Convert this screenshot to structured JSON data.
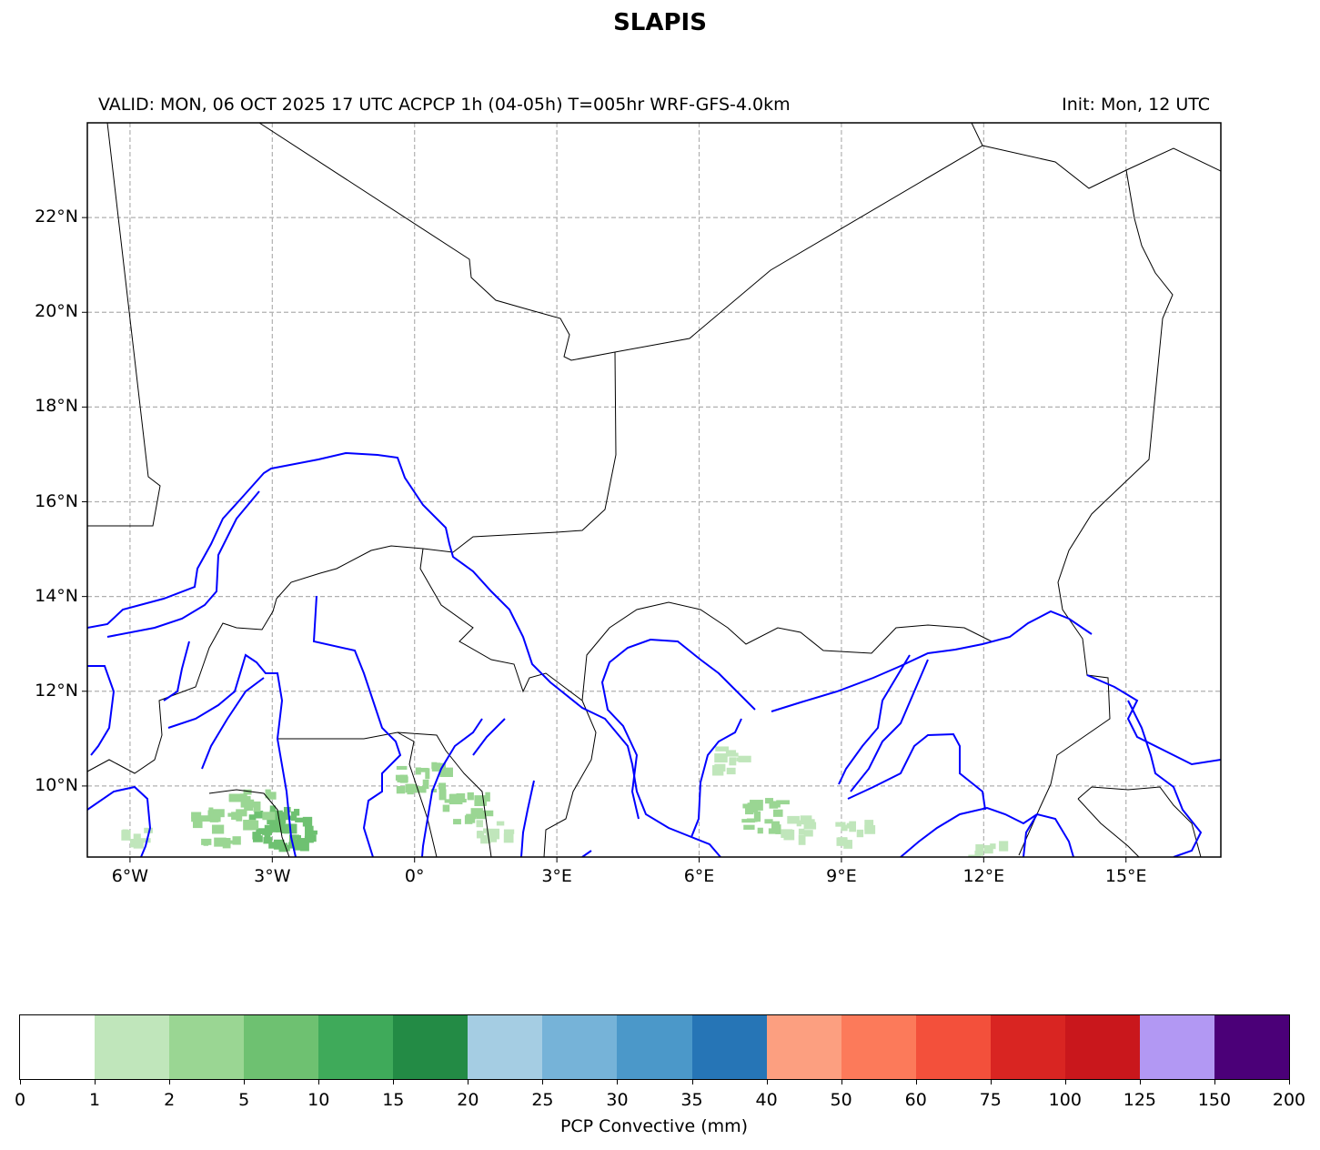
{
  "title": "SLAPIS",
  "subtitle_left": "VALID: MON, 06 OCT 2025 17 UTC   ACPCP 1h (04-05h) T=005hr WRF-GFS-4.0km",
  "subtitle_right": "Init: Mon, 12 UTC",
  "map": {
    "lon_range": [
      -6.9,
      17
    ],
    "lat_range": [
      8.5,
      24
    ],
    "gridlines": true,
    "lon_ticks": [
      {
        "value": -6,
        "label": "6°W"
      },
      {
        "value": -3,
        "label": "3°W"
      },
      {
        "value": 0,
        "label": "0°"
      },
      {
        "value": 3,
        "label": "3°E"
      },
      {
        "value": 6,
        "label": "6°E"
      },
      {
        "value": 9,
        "label": "9°E"
      },
      {
        "value": 12,
        "label": "12°E"
      },
      {
        "value": 15,
        "label": "15°E"
      }
    ],
    "lat_ticks": [
      {
        "value": 22,
        "label": "22°N"
      },
      {
        "value": 20,
        "label": "20°N"
      },
      {
        "value": 18,
        "label": "18°N"
      },
      {
        "value": 16,
        "label": "16°N"
      },
      {
        "value": 14,
        "label": "14°N"
      },
      {
        "value": 12,
        "label": "12°N"
      },
      {
        "value": 10,
        "label": "10°N"
      }
    ],
    "border_color": "#000000",
    "river_color": "#0000ff",
    "precip_areas": [
      {
        "lon": -3.0,
        "lat": 9.3,
        "level": "5-10"
      },
      {
        "lon": -2.7,
        "lat": 9.1,
        "level": "5-10"
      },
      {
        "lon": -3.5,
        "lat": 9.6,
        "level": "2-5"
      },
      {
        "lon": -4.3,
        "lat": 9.2,
        "level": "2-5"
      },
      {
        "lon": -5.9,
        "lat": 9.0,
        "level": "1-2"
      },
      {
        "lon": 0.1,
        "lat": 10.2,
        "level": "2-5"
      },
      {
        "lon": 1.0,
        "lat": 9.6,
        "level": "2-5"
      },
      {
        "lon": 1.6,
        "lat": 9.1,
        "level": "1-2"
      },
      {
        "lon": 7.3,
        "lat": 9.4,
        "level": "2-5"
      },
      {
        "lon": 8.0,
        "lat": 9.2,
        "level": "1-2"
      },
      {
        "lon": 6.6,
        "lat": 10.6,
        "level": "1-2"
      },
      {
        "lon": 9.2,
        "lat": 9.1,
        "level": "1-2"
      },
      {
        "lon": 12.0,
        "lat": 8.6,
        "level": "1-2"
      }
    ]
  },
  "colorbar": {
    "label": "PCP Convective (mm)",
    "ticks": [
      "0",
      "1",
      "2",
      "5",
      "10",
      "15",
      "20",
      "25",
      "30",
      "35",
      "40",
      "50",
      "60",
      "75",
      "100",
      "125",
      "150",
      "200"
    ],
    "colors": [
      "#ffffff",
      "#c0e6bb",
      "#9ad693",
      "#6ec171",
      "#3faa5a",
      "#238b45",
      "#a5cde3",
      "#76b3d8",
      "#4b98c9",
      "#2675b6",
      "#fc9f80",
      "#fc7a5a",
      "#f3503b",
      "#d92522",
      "#c9171c",
      "#b298f3",
      "#4b0078"
    ]
  }
}
